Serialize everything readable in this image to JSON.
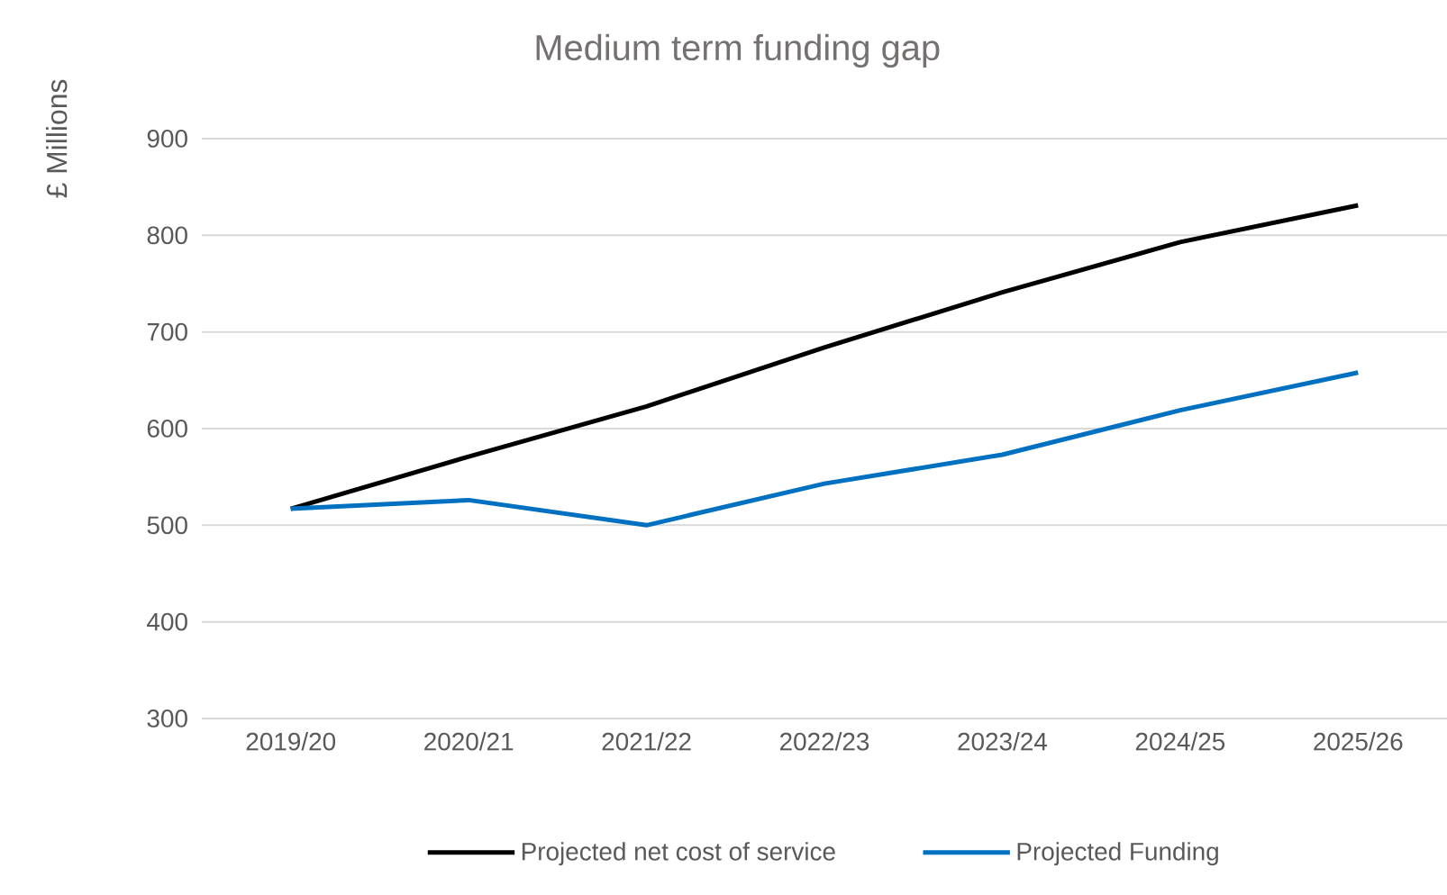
{
  "chart_data": {
    "type": "line",
    "title": "Medium term funding gap",
    "ylabel": "£ Millions",
    "categories": [
      "2019/20",
      "2020/21",
      "2021/22",
      "2022/23",
      "2023/24",
      "2024/25",
      "2025/26"
    ],
    "series": [
      {
        "name": "Projected net cost of service",
        "color": "#000000",
        "values": [
          517,
          571,
          623,
          684,
          741,
          793,
          831
        ]
      },
      {
        "name": "Projected Funding",
        "color": "#0070c0",
        "values": [
          517,
          526,
          500,
          543,
          573,
          619,
          658
        ]
      }
    ],
    "ylim": [
      300,
      900
    ],
    "yticks": [
      300,
      400,
      500,
      600,
      700,
      800,
      900
    ],
    "grid": "y",
    "legend": "bottom",
    "marker": "none",
    "line_style": "solid"
  }
}
